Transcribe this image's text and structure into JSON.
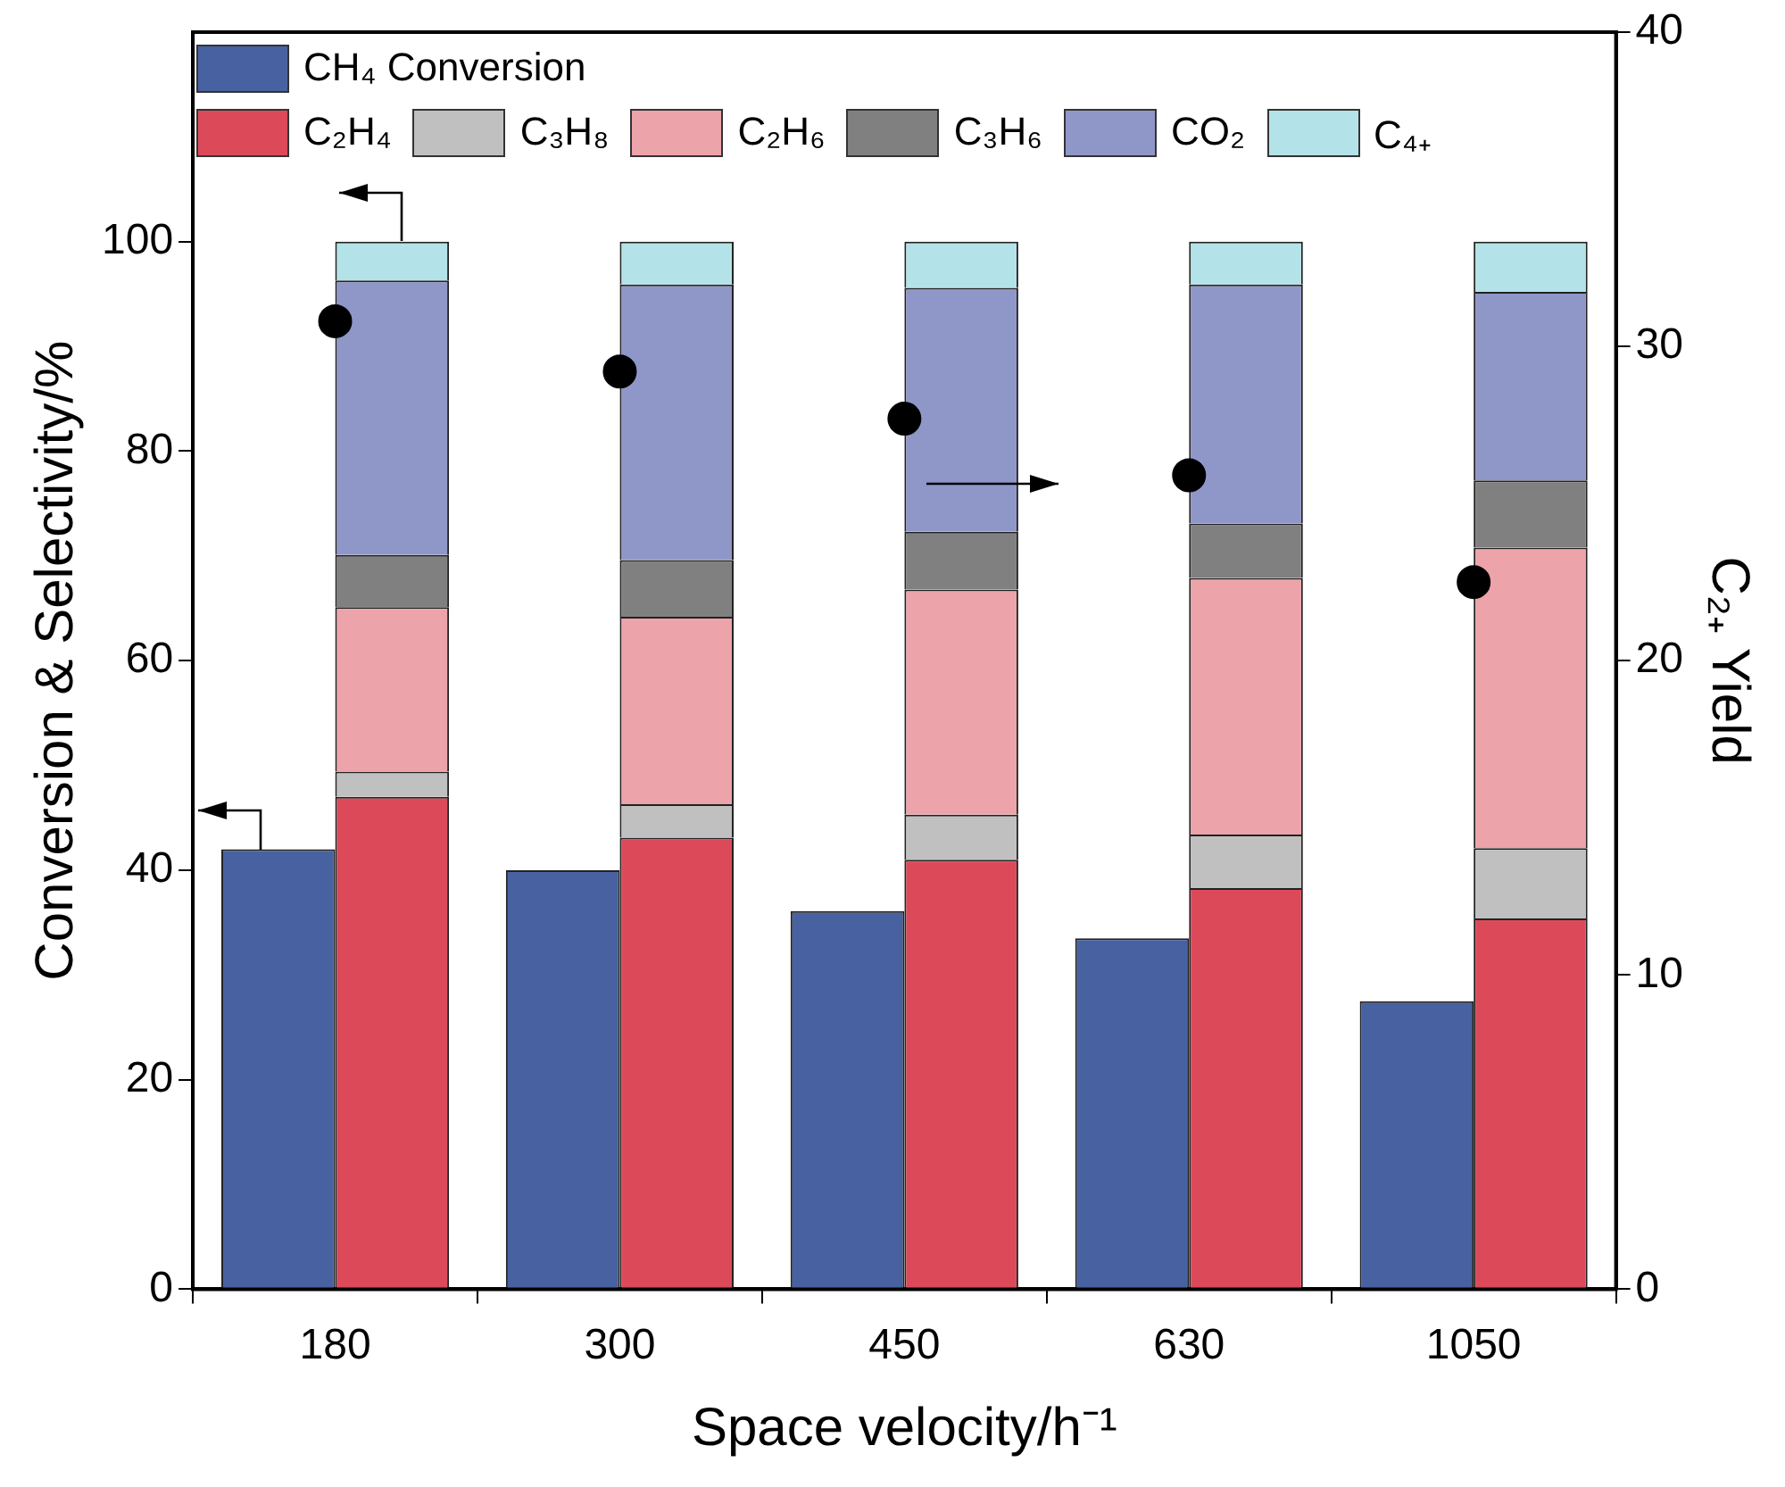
{
  "chart_data": {
    "type": "bar",
    "xlabel": "Space velocity/h⁻¹",
    "ylabel": "Conversion & Selectivity/%",
    "y2label": "C₂₊ Yield",
    "categories": [
      "180",
      "300",
      "450",
      "630",
      "1050"
    ],
    "legend": "top",
    "grid": false,
    "ylim": [
      0,
      120
    ],
    "yticks": [
      0,
      20,
      40,
      60,
      80,
      100
    ],
    "y2lim": [
      0,
      40
    ],
    "y2ticks": [
      0,
      10,
      20,
      30,
      40
    ],
    "series": [
      {
        "name": "CH₄ Conversion",
        "color": "#4861a0",
        "values": [
          42,
          40,
          36.1,
          33.5,
          27.5
        ]
      },
      {
        "name": "C₂H₄",
        "color": "#dc4a5a",
        "base": [
          0,
          0,
          0,
          0,
          0
        ],
        "values": [
          47,
          43.1,
          41,
          38.3,
          35.4
        ]
      },
      {
        "name": "C₃H₈",
        "color": "#c0c0c0",
        "base": [
          47,
          43.1,
          41,
          38.3,
          35.4
        ],
        "values": [
          2.4,
          3.2,
          4.3,
          5.1,
          6.7
        ]
      },
      {
        "name": "C₂H₆",
        "color": "#eca3a9",
        "base": [
          49.4,
          46.3,
          45.3,
          43.4,
          42.1
        ],
        "values": [
          15.7,
          17.9,
          21.5,
          24.5,
          28.7
        ]
      },
      {
        "name": "C₃H₆",
        "color": "#808080",
        "base": [
          65.1,
          64.2,
          66.8,
          67.9,
          70.8
        ],
        "values": [
          5,
          5.4,
          5.5,
          5.2,
          6.4
        ]
      },
      {
        "name": "CO₂",
        "color": "#8f97c8",
        "base": [
          70.1,
          69.6,
          72.3,
          73.1,
          77.2
        ],
        "values": [
          26.2,
          26.3,
          23.3,
          22.8,
          18
        ]
      },
      {
        "name": "C₄₊",
        "color": "#b3e3e8",
        "base": [
          96.3,
          95.9,
          95.6,
          95.9,
          95.2
        ],
        "values": [
          3.7,
          4.1,
          4.4,
          4.1,
          4.8
        ]
      },
      {
        "type": "scatter",
        "axis": "y2",
        "color": "#000000",
        "marker": "circle",
        "values": [
          30.8,
          29.2,
          27.7,
          25.9,
          22.5
        ]
      }
    ]
  }
}
